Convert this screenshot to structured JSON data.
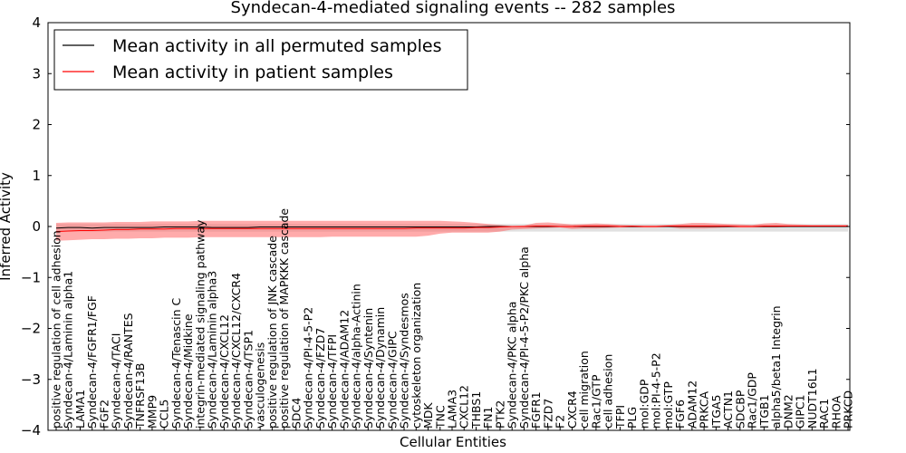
{
  "chart_data": {
    "type": "line",
    "title": "Syndecan-4-mediated signaling events -- 282 samples",
    "xlabel": "Cellular Entities",
    "ylabel": "Inferred Activity",
    "ylim": [
      -4,
      4
    ],
    "yticks": [
      -4,
      -3,
      -2,
      -1,
      0,
      1,
      2,
      3,
      4
    ],
    "grid": false,
    "legend_position": "top-left",
    "categories": [
      "positive regulation of cell adhesion",
      "Syndecan-4/Laminin alpha1",
      "LAMA1",
      "Syndecan-4/FGFR1/FGF",
      "FGF2",
      "Syndecan-4/TACI",
      "Syndecan-4/RANTES",
      "TNFRSF13B",
      "MMP9",
      "CCL5",
      "Syndecan-4/Tenascin C",
      "Syndecan-4/Midkine",
      "integrin-mediated signaling pathway",
      "Syndecan-4/Laminin alpha3",
      "Syndecan-4/CXCL12",
      "Syndecan-4/CXCL12/CXCR4",
      "Syndecan-4/TSP1",
      "vasculogenesis",
      "positive regulation of JNK cascade",
      "positive regulation of MAPKKK cascade",
      "SDC4",
      "Syndecan-4/PI-4-5-P2",
      "Syndecan-4/FZD7",
      "Syndecan-4/TFPI",
      "Syndecan-4/ADAM12",
      "Syndecan-4/alpha-Actinin",
      "Syndecan-4/Syntenin",
      "Syndecan-4/Dynamin",
      "Syndecan-4/GIPC",
      "Syndecan-4/Syndesmos",
      "cytoskeleton organization",
      "MDK",
      "TNC",
      "LAMA3",
      "CXCL12",
      "THBS1",
      "FN1",
      "PTK2",
      "Syndecan-4/PKC alpha",
      "Syndecan-4/PI-4-5-P2/PKC alpha",
      "FGFR1",
      "FZD7",
      "F2",
      "CXCR4",
      "cell migration",
      "Rac1/GTP",
      "cell adhesion",
      "TFPI",
      "PLG",
      "mol:GDP",
      "mol:PI-4-5-P2",
      "mol:GTP",
      "FGF6",
      "ADAM12",
      "PRKCA",
      "ITGA5",
      "ACTN1",
      "SDCBP",
      "Rac1/GDP",
      "ITGB1",
      "alpha5/beta1 Integrin",
      "DNM2",
      "GIPC1",
      "NUDT16L1",
      "RAC1",
      "RHOA",
      "PRKCD"
    ],
    "series": [
      {
        "name": "Mean activity in all permuted samples",
        "color": "#000000",
        "values": [
          -0.03,
          -0.02,
          -0.02,
          -0.03,
          -0.02,
          -0.02,
          -0.02,
          -0.02,
          -0.02,
          -0.01,
          -0.01,
          -0.01,
          -0.01,
          -0.02,
          -0.02,
          -0.02,
          -0.02,
          -0.01,
          -0.01,
          -0.01,
          -0.01,
          -0.01,
          -0.01,
          -0.01,
          -0.01,
          -0.01,
          -0.01,
          -0.01,
          -0.01,
          -0.01,
          -0.01,
          -0.01,
          -0.01,
          -0.01,
          -0.01,
          -0.01,
          0.0,
          0.0,
          0.0,
          0.0,
          0.0,
          0.0,
          0.0,
          0.0,
          0.0,
          0.0,
          0.0,
          0.0,
          0.0,
          0.0,
          0.0,
          0.0,
          0.0,
          0.0,
          0.0,
          0.0,
          0.0,
          0.0,
          0.0,
          0.0,
          0.0,
          0.0,
          0.0,
          0.0,
          0.0,
          0.0,
          0.0
        ]
      },
      {
        "name": "Mean activity in patient samples",
        "color": "#ff0000",
        "values": [
          -0.1,
          -0.09,
          -0.08,
          -0.08,
          -0.07,
          -0.06,
          -0.06,
          -0.05,
          -0.05,
          -0.05,
          -0.04,
          -0.04,
          -0.04,
          -0.04,
          -0.04,
          -0.04,
          -0.04,
          -0.04,
          -0.04,
          -0.04,
          -0.04,
          -0.04,
          -0.04,
          -0.04,
          -0.04,
          -0.04,
          -0.04,
          -0.04,
          -0.04,
          -0.04,
          -0.03,
          -0.03,
          -0.03,
          -0.03,
          -0.03,
          -0.02,
          -0.02,
          -0.01,
          0.0,
          0.0,
          0.01,
          0.01,
          0.0,
          0.0,
          0.01,
          0.01,
          0.01,
          0.0,
          0.01,
          0.0,
          0.0,
          0.01,
          0.01,
          0.01,
          0.01,
          0.01,
          0.01,
          0.0,
          0.0,
          0.01,
          0.01,
          0.01,
          0.01,
          0.01,
          0.01,
          0.01,
          0.01
        ]
      }
    ],
    "band_permuted": {
      "color": "#aaaaaa",
      "lower": [
        -0.1,
        -0.1,
        -0.1,
        -0.1,
        -0.1,
        -0.1,
        -0.1,
        -0.1,
        -0.1,
        -0.1,
        -0.1,
        -0.1,
        -0.1,
        -0.1,
        -0.1,
        -0.1,
        -0.1,
        -0.1,
        -0.1,
        -0.1,
        -0.1,
        -0.1,
        -0.1,
        -0.1,
        -0.1,
        -0.1,
        -0.1,
        -0.1,
        -0.1,
        -0.1,
        -0.1,
        -0.1,
        -0.1,
        -0.1,
        -0.1,
        -0.1,
        -0.1,
        -0.1,
        -0.1,
        -0.1,
        -0.1,
        -0.1,
        -0.1,
        -0.1,
        -0.1,
        -0.1,
        -0.1,
        -0.1,
        -0.1,
        -0.1,
        -0.1,
        -0.1,
        -0.1,
        -0.1,
        -0.1,
        -0.1,
        -0.1,
        -0.1,
        -0.1,
        -0.1,
        -0.1,
        -0.1,
        -0.1,
        -0.1,
        -0.1,
        -0.1,
        -0.1
      ],
      "upper": [
        0.05,
        0.05,
        0.05,
        0.05,
        0.05,
        0.05,
        0.05,
        0.05,
        0.05,
        0.05,
        0.05,
        0.05,
        0.05,
        0.05,
        0.05,
        0.05,
        0.05,
        0.05,
        0.05,
        0.05,
        0.05,
        0.05,
        0.05,
        0.05,
        0.05,
        0.05,
        0.05,
        0.05,
        0.05,
        0.05,
        0.05,
        0.05,
        0.05,
        0.05,
        0.05,
        0.05,
        0.05,
        0.05,
        0.05,
        0.05,
        0.05,
        0.05,
        0.05,
        0.05,
        0.05,
        0.05,
        0.05,
        0.05,
        0.05,
        0.05,
        0.05,
        0.05,
        0.05,
        0.05,
        0.05,
        0.05,
        0.05,
        0.05,
        0.05,
        0.05,
        0.05,
        0.05,
        0.05,
        0.05,
        0.05,
        0.05,
        0.05
      ]
    },
    "band_patient": {
      "color": "#ff6666",
      "lower": [
        -0.28,
        -0.27,
        -0.26,
        -0.25,
        -0.25,
        -0.24,
        -0.24,
        -0.23,
        -0.23,
        -0.22,
        -0.22,
        -0.22,
        -0.21,
        -0.21,
        -0.21,
        -0.21,
        -0.21,
        -0.21,
        -0.21,
        -0.21,
        -0.21,
        -0.21,
        -0.21,
        -0.2,
        -0.2,
        -0.2,
        -0.2,
        -0.2,
        -0.2,
        -0.2,
        -0.2,
        -0.18,
        -0.14,
        -0.12,
        -0.12,
        -0.12,
        -0.12,
        -0.1,
        -0.06,
        -0.05,
        -0.04,
        -0.03,
        -0.02,
        -0.05,
        -0.04,
        -0.04,
        -0.03,
        -0.02,
        -0.02,
        -0.02,
        -0.02,
        -0.01,
        -0.04,
        -0.04,
        -0.04,
        -0.03,
        -0.02,
        -0.02,
        -0.02,
        -0.02,
        -0.02,
        -0.01,
        -0.01,
        -0.01,
        -0.01,
        -0.01,
        -0.01
      ],
      "upper": [
        0.07,
        0.08,
        0.08,
        0.08,
        0.08,
        0.09,
        0.09,
        0.09,
        0.1,
        0.1,
        0.1,
        0.1,
        0.11,
        0.11,
        0.11,
        0.11,
        0.11,
        0.11,
        0.11,
        0.11,
        0.11,
        0.11,
        0.11,
        0.11,
        0.11,
        0.11,
        0.11,
        0.11,
        0.11,
        0.11,
        0.11,
        0.11,
        0.11,
        0.1,
        0.09,
        0.07,
        0.05,
        0.03,
        0.01,
        0.02,
        0.07,
        0.08,
        0.06,
        0.04,
        0.05,
        0.06,
        0.05,
        0.03,
        0.02,
        0.02,
        0.02,
        0.03,
        0.05,
        0.07,
        0.07,
        0.06,
        0.05,
        0.04,
        0.03,
        0.06,
        0.07,
        0.05,
        0.04,
        0.03,
        0.03,
        0.03,
        0.03
      ]
    }
  }
}
